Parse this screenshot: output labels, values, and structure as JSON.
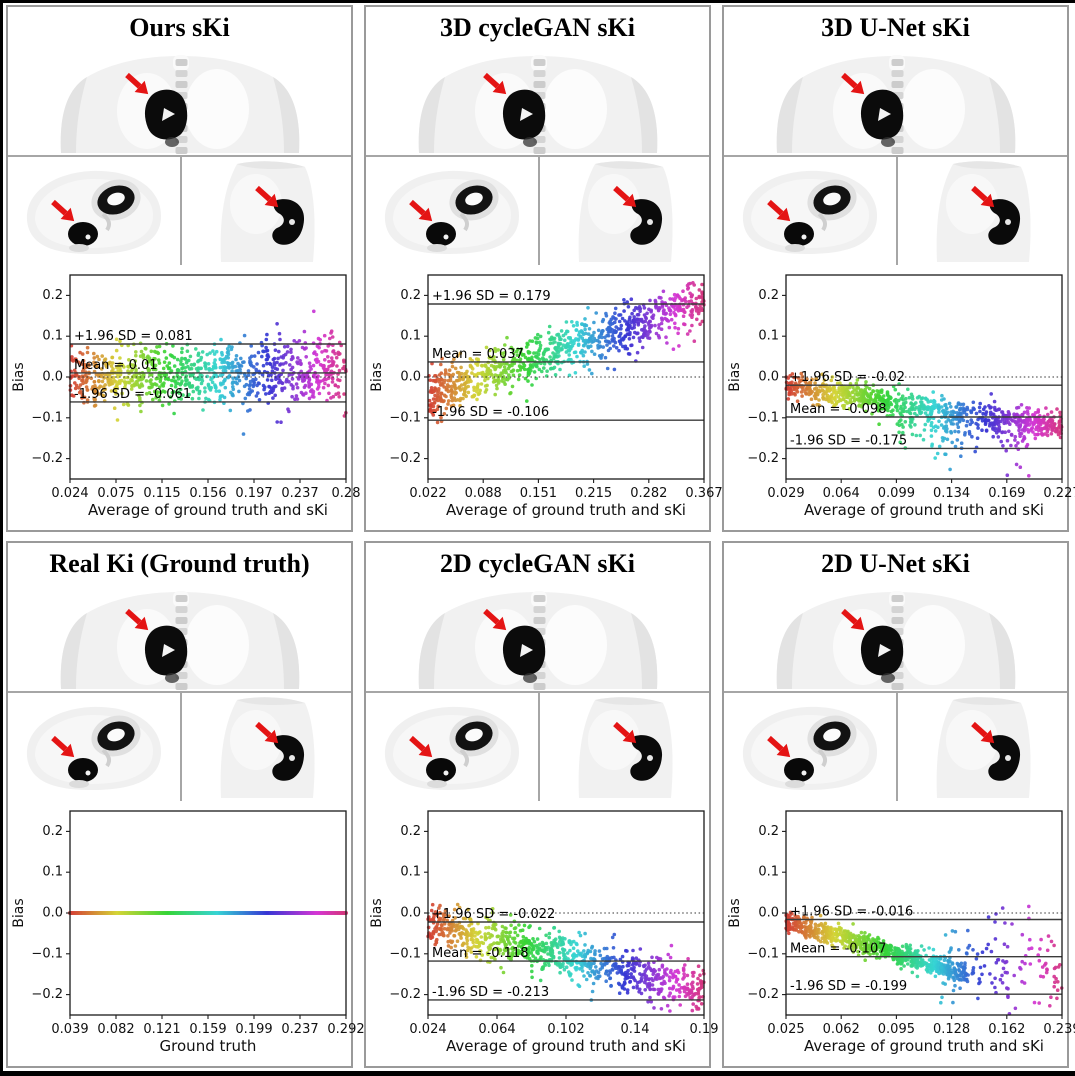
{
  "figure": {
    "outer_frame_color": "#000000",
    "panel_border_color": "#9a9a9a",
    "divider_color": "#a6a6a6",
    "background": "#ffffff",
    "arrow_color": "#e41414",
    "line_color": "#3b3b3b"
  },
  "panels": [
    {
      "title": "Ours sKi",
      "views": [
        "coronal",
        "axial",
        "sagittal"
      ]
    },
    {
      "title": "3D cycleGAN sKi",
      "views": [
        "coronal",
        "axial",
        "sagittal"
      ]
    },
    {
      "title": "3D U-Net sKi",
      "views": [
        "coronal",
        "axial",
        "sagittal"
      ]
    },
    {
      "title": "Real Ki (Ground truth)",
      "views": [
        "coronal",
        "axial",
        "sagittal"
      ]
    },
    {
      "title": "2D cycleGAN sKi",
      "views": [
        "coronal",
        "axial",
        "sagittal"
      ]
    },
    {
      "title": "2D U-Net sKi",
      "views": [
        "coronal",
        "axial",
        "sagittal"
      ]
    }
  ],
  "chart_data": [
    {
      "type": "scatter",
      "panel": "Ours sKi",
      "xlabel": "Average of ground truth and sKi",
      "ylabel": "Bias",
      "x_ticks": [
        "0.024",
        "0.075",
        "0.115",
        "0.156",
        "0.197",
        "0.237",
        "0.28"
      ],
      "y_ticks": [
        "0.2",
        "0.1",
        "0.0",
        "−0.1",
        "−0.2"
      ],
      "ylim": [
        -0.25,
        0.25
      ],
      "zero_line_dotted": true,
      "stats": {
        "mean": 0.01,
        "loa_upper": 0.081,
        "loa_lower": -0.061
      },
      "annotations": {
        "upper": "+1.96 SD = 0.081",
        "mean": "Mean = 0.01",
        "lower": "-1.96 SD = -0.061"
      },
      "n_points": 950,
      "colormap": "rainbow-by-x",
      "trend_model": {
        "type": "linear",
        "base": -0.002,
        "slope": 0.018,
        "noise": 0.032,
        "noise_growth": 0.012
      }
    },
    {
      "type": "scatter",
      "panel": "3D cycleGAN sKi",
      "xlabel": "Average of ground truth and sKi",
      "ylabel": "Bias",
      "x_ticks": [
        "0.022",
        "0.088",
        "0.151",
        "0.215",
        "0.282",
        "0.367"
      ],
      "y_ticks": [
        "0.2",
        "0.1",
        "0.0",
        "−0.1",
        "−0.2"
      ],
      "ylim": [
        -0.25,
        0.25
      ],
      "zero_line_dotted": true,
      "stats": {
        "mean": 0.037,
        "loa_upper": 0.179,
        "loa_lower": -0.106
      },
      "annotations": {
        "upper": "+1.96 SD = 0.179",
        "mean": "Mean = 0.037",
        "lower": "-1.96 SD = -0.106"
      },
      "n_points": 950,
      "colormap": "rainbow-by-x",
      "trend_model": {
        "type": "linear",
        "base": -0.045,
        "slope": 0.225,
        "noise": 0.029,
        "noise_growth": 0
      }
    },
    {
      "type": "scatter",
      "panel": "3D U-Net sKi",
      "xlabel": "Average of ground truth and sKi",
      "ylabel": "Bias",
      "x_ticks": [
        "0.029",
        "0.064",
        "0.099",
        "0.134",
        "0.169",
        "0.227"
      ],
      "y_ticks": [
        "0.2",
        "0.1",
        "0.0",
        "−0.1",
        "−0.2"
      ],
      "ylim": [
        -0.25,
        0.25
      ],
      "zero_line_dotted": true,
      "stats": {
        "mean": -0.098,
        "loa_upper": -0.02,
        "loa_lower": -0.175
      },
      "annotations": {
        "upper": "+1.96 SD = -0.02",
        "mean": "Mean = -0.098",
        "lower": "-1.96 SD = -0.175"
      },
      "n_points": 950,
      "colormap": "rainbow-by-x",
      "trend_model": {
        "type": "linear-dip",
        "base": -0.022,
        "slope": -0.103,
        "noise": 0.016,
        "noise_growth": 0,
        "dip_from": 0.38,
        "dip_to": 0.88,
        "dip_prob": 0.4,
        "dip_sd": 0.05
      }
    },
    {
      "type": "scatter",
      "panel": "Real Ki (Ground truth)",
      "xlabel": "Ground truth",
      "ylabel": "Bias",
      "x_ticks": [
        "0.039",
        "0.082",
        "0.121",
        "0.159",
        "0.199",
        "0.237",
        "0.292"
      ],
      "y_ticks": [
        "0.2",
        "0.1",
        "0.0",
        "−0.1",
        "−0.2"
      ],
      "ylim": [
        -0.25,
        0.25
      ],
      "zero_line_dotted": false,
      "stats": null,
      "annotations": null,
      "n_points": 240,
      "colormap": "rainbow-by-x",
      "trend_model": {
        "type": "flat-line",
        "value": 0
      }
    },
    {
      "type": "scatter",
      "panel": "2D cycleGAN sKi",
      "xlabel": "Average of ground truth and sKi",
      "ylabel": "Bias",
      "x_ticks": [
        "0.024",
        "0.064",
        "0.102",
        "0.14",
        "0.19"
      ],
      "y_ticks": [
        "0.2",
        "0.1",
        "0.0",
        "−0.1",
        "−0.2"
      ],
      "ylim": [
        -0.25,
        0.25
      ],
      "zero_line_dotted": true,
      "stats": {
        "mean": -0.118,
        "loa_upper": -0.022,
        "loa_lower": -0.213
      },
      "annotations": {
        "upper": "+1.96 SD = -0.022",
        "mean": "Mean = -0.118",
        "lower": "-1.96 SD = -0.213"
      },
      "n_points": 900,
      "colormap": "rainbow-by-x",
      "trend_model": {
        "type": "linear",
        "base": -0.028,
        "slope": -0.158,
        "noise": 0.024,
        "noise_growth": 0.006
      }
    },
    {
      "type": "scatter",
      "panel": "2D U-Net sKi",
      "xlabel": "Average of ground truth and sKi",
      "ylabel": "Bias",
      "x_ticks": [
        "0.025",
        "0.062",
        "0.095",
        "0.128",
        "0.162",
        "0.239"
      ],
      "y_ticks": [
        "0.2",
        "0.1",
        "0.0",
        "−0.1",
        "−0.2"
      ],
      "ylim": [
        -0.25,
        0.25
      ],
      "zero_line_dotted": true,
      "stats": {
        "mean": -0.107,
        "loa_upper": -0.016,
        "loa_lower": -0.199
      },
      "annotations": {
        "upper": "+1.96 SD = -0.016",
        "mean": "Mean = -0.107",
        "lower": "-1.96 SD = -0.199"
      },
      "n_points": 900,
      "colormap": "rainbow-by-x",
      "trend_model": {
        "type": "two-cluster",
        "base": -0.02,
        "slope": -0.2,
        "noise": 0.013,
        "band_frac": 0.86,
        "band_tmax": 0.66,
        "tail_tmin": 0.55,
        "tail_mean": -0.135,
        "tail_sd": 0.055
      }
    }
  ]
}
